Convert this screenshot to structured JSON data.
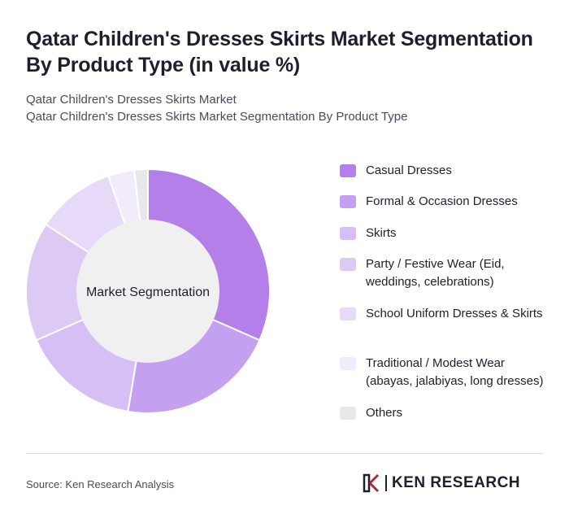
{
  "header": {
    "title": "Qatar Children's Dresses Skirts Market Segmentation By Product Type (in value %)",
    "subtitle_1": "Qatar Children's Dresses Skirts Market",
    "subtitle_2": "Qatar Children's Dresses Skirts Market Segmentation By Product Type"
  },
  "chart_data": {
    "type": "pie",
    "donut": true,
    "center_label": "Market Segmentation",
    "categories": [
      "Casual Dresses",
      "Formal & Occasion Dresses",
      "Skirts",
      "Party / Festive Wear (Eid, weddings, celebrations)",
      "School Uniform Dresses & Skirts",
      "Traditional / Modest Wear (abayas, jalabiyas, long dresses)",
      "Others"
    ],
    "values": [
      30,
      20,
      15,
      15,
      10,
      3.3,
      1.7
    ],
    "colors": [
      "#b57fe9",
      "#c4a0f0",
      "#d6bff5",
      "#dccaf5",
      "#e6daf8",
      "#f1ebfb",
      "#e8e8ea"
    ],
    "legend_position": "right"
  },
  "footer": {
    "source": "Source: Ken Research Analysis",
    "logo_text": "KEN RESEARCH"
  }
}
